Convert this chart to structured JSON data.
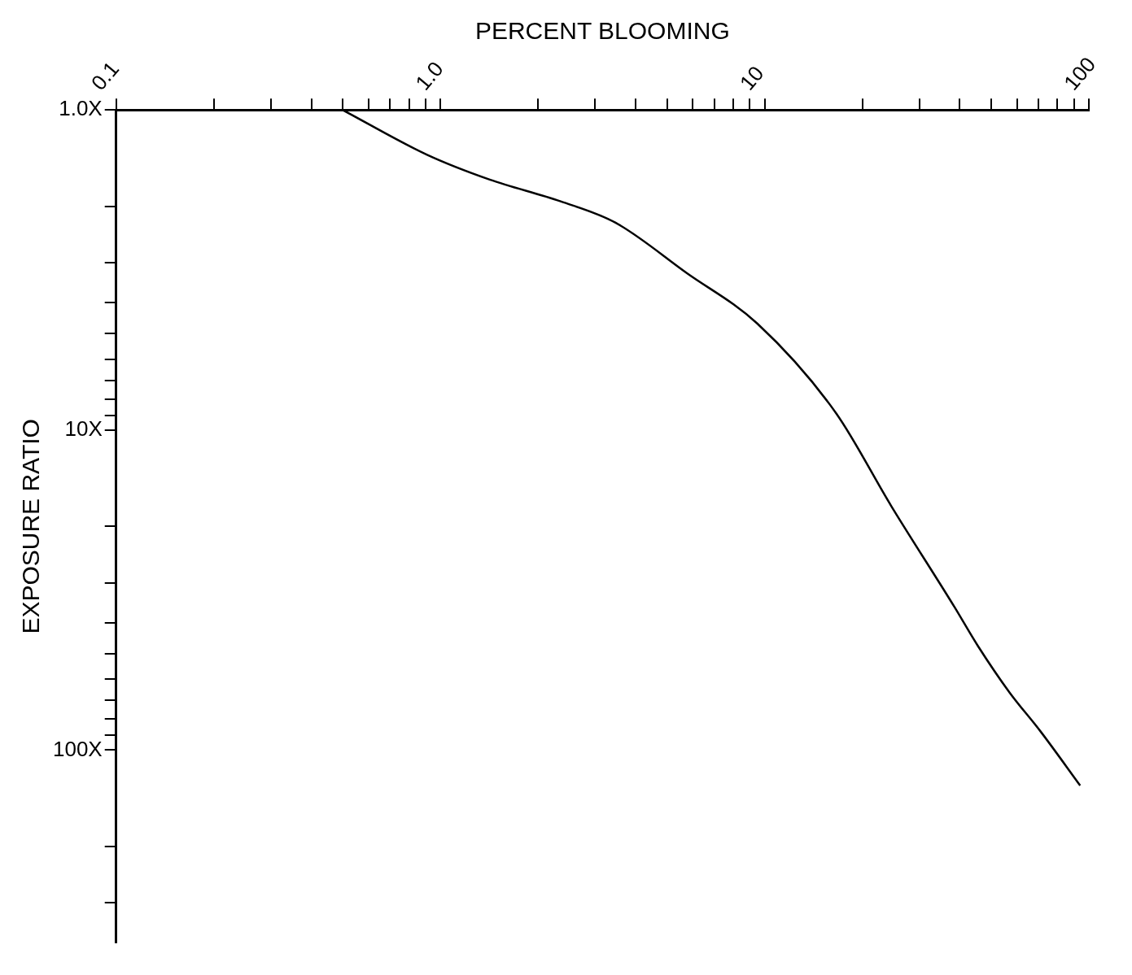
{
  "chart_data": {
    "type": "line",
    "xlabel": "PERCENT BLOOMING",
    "ylabel": "EXPOSURE RATIO",
    "log": "xy",
    "marker": "none",
    "line_style": "solid",
    "xlim": [
      0.1,
      100
    ],
    "ylim": [
      400,
      1
    ],
    "xticks": [
      {
        "value": 0.1,
        "label": "0.1"
      },
      {
        "value": 0.2,
        "label": null
      },
      {
        "value": 0.3,
        "label": null
      },
      {
        "value": 0.4,
        "label": null
      },
      {
        "value": 0.5,
        "label": null
      },
      {
        "value": 0.6,
        "label": null
      },
      {
        "value": 0.7,
        "label": null
      },
      {
        "value": 0.8,
        "label": null
      },
      {
        "value": 0.9,
        "label": null
      },
      {
        "value": 1,
        "label": "1.0"
      },
      {
        "value": 2,
        "label": null
      },
      {
        "value": 3,
        "label": null
      },
      {
        "value": 4,
        "label": null
      },
      {
        "value": 5,
        "label": null
      },
      {
        "value": 6,
        "label": null
      },
      {
        "value": 7,
        "label": null
      },
      {
        "value": 8,
        "label": null
      },
      {
        "value": 9,
        "label": null
      },
      {
        "value": 10,
        "label": "10"
      },
      {
        "value": 20,
        "label": null
      },
      {
        "value": 30,
        "label": null
      },
      {
        "value": 40,
        "label": null
      },
      {
        "value": 50,
        "label": null
      },
      {
        "value": 60,
        "label": null
      },
      {
        "value": 70,
        "label": null
      },
      {
        "value": 80,
        "label": null
      },
      {
        "value": 90,
        "label": null
      },
      {
        "value": 100,
        "label": "100"
      }
    ],
    "yticks": [
      {
        "value": 1,
        "label": "1.0X"
      },
      {
        "value": 2,
        "label": null
      },
      {
        "value": 3,
        "label": null
      },
      {
        "value": 4,
        "label": null
      },
      {
        "value": 5,
        "label": null
      },
      {
        "value": 6,
        "label": null
      },
      {
        "value": 7,
        "label": null
      },
      {
        "value": 8,
        "label": null
      },
      {
        "value": 9,
        "label": null
      },
      {
        "value": 10,
        "label": "10X"
      },
      {
        "value": 20,
        "label": null
      },
      {
        "value": 30,
        "label": null
      },
      {
        "value": 40,
        "label": null
      },
      {
        "value": 50,
        "label": null
      },
      {
        "value": 60,
        "label": null
      },
      {
        "value": 70,
        "label": null
      },
      {
        "value": 80,
        "label": null
      },
      {
        "value": 90,
        "label": null
      },
      {
        "value": 100,
        "label": "100X"
      },
      {
        "value": 200,
        "label": null
      },
      {
        "value": 300,
        "label": null
      }
    ],
    "series": [
      {
        "color": "#000000",
        "x": [
          0.5,
          0.91,
          1.42,
          2.35,
          3.47,
          5.75,
          9.5,
          16.6,
          24.6,
          38.5,
          45.5,
          56.9,
          71,
          94
        ],
        "values": [
          1.0,
          1.38,
          1.65,
          1.93,
          2.25,
          3.23,
          4.65,
          8.85,
          17.3,
          35.7,
          47.3,
          66,
          87.5,
          129
        ]
      }
    ]
  }
}
